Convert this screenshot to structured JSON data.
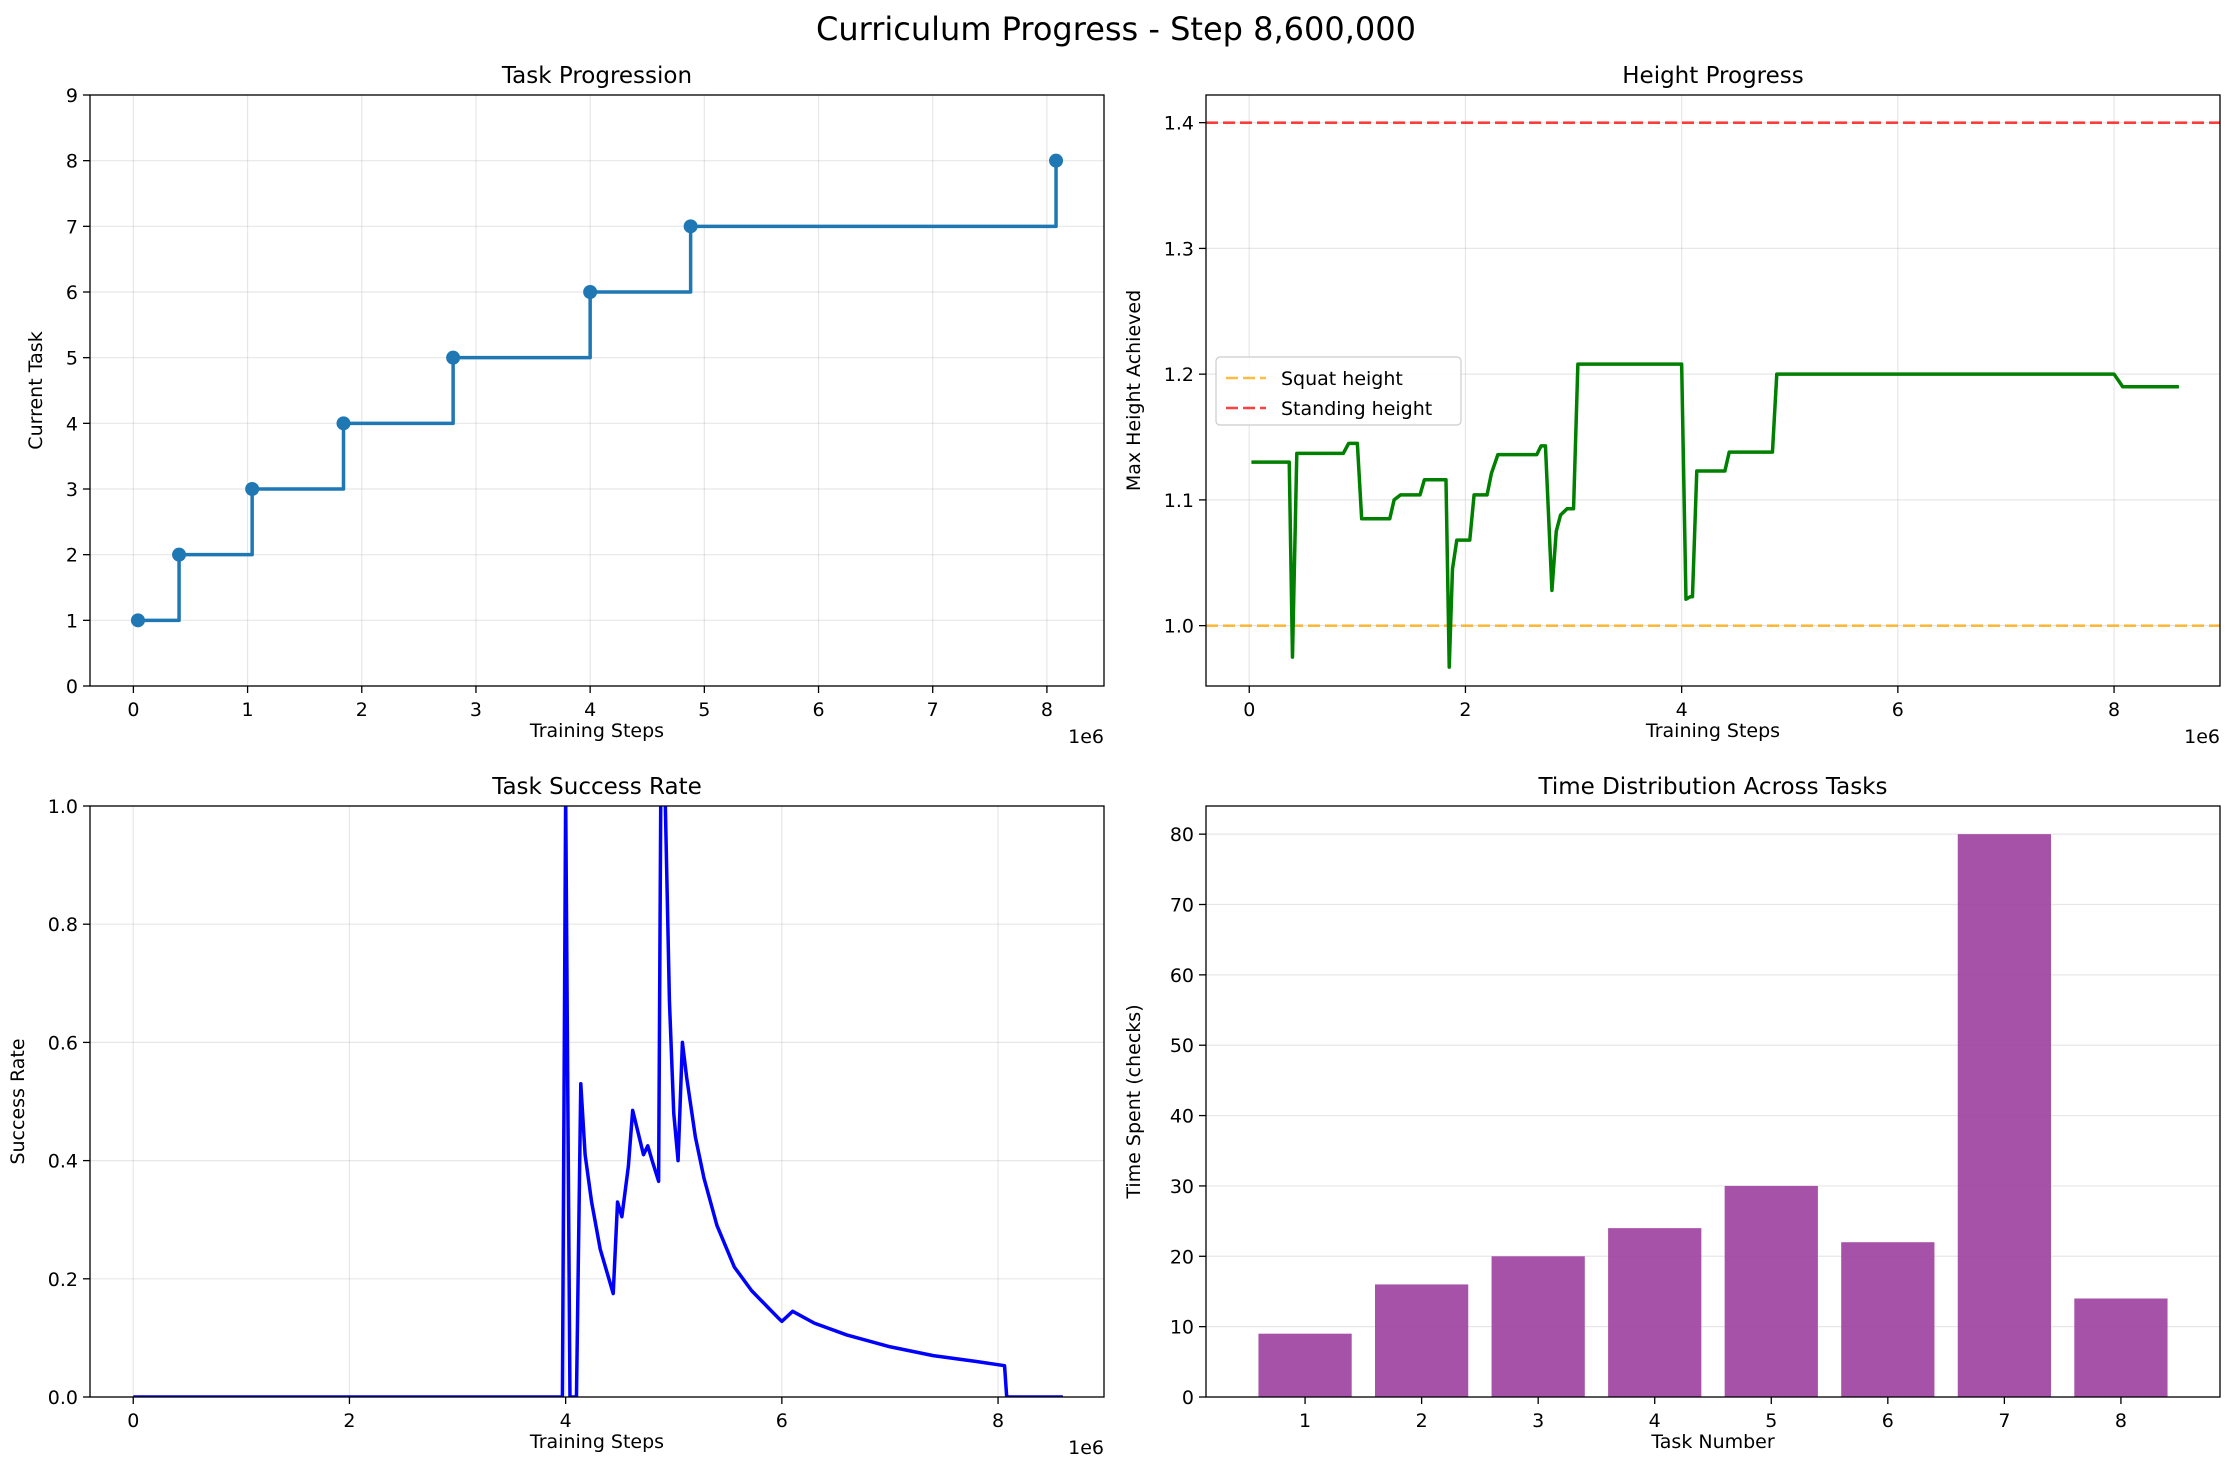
{
  "figure": {
    "title": "Curriculum Progress - Step 8,600,000"
  },
  "chart_data": [
    {
      "id": "task",
      "type": "line",
      "title": "Task Progression",
      "xlabel": "Training Steps",
      "ylabel": "Current Task",
      "x_multiplier": "1e6",
      "xlim": [
        -0.38,
        8.5
      ],
      "ylim": [
        0,
        9
      ],
      "xticks": [
        0,
        1,
        2,
        3,
        4,
        5,
        6,
        7,
        8
      ],
      "yticks": [
        0,
        1,
        2,
        3,
        4,
        5,
        6,
        7,
        8,
        9
      ],
      "grid": true,
      "step": true,
      "color": "#1f77b4",
      "series": [
        {
          "x": [
            0.04,
            0.4,
            1.04,
            1.84,
            2.8,
            4.0,
            4.88,
            8.08
          ],
          "y": [
            1,
            2,
            3,
            4,
            5,
            6,
            7,
            8
          ]
        }
      ],
      "end_x": 8.6
    },
    {
      "id": "height",
      "type": "line",
      "title": "Height Progress",
      "xlabel": "Training Steps",
      "ylabel": "Max Height Achieved",
      "x_multiplier": "1e6",
      "xlim": [
        -0.4,
        8.98
      ],
      "ylim": [
        0.952,
        1.422
      ],
      "xticks": [
        0,
        2,
        4,
        6,
        8
      ],
      "yticks": [
        1.0,
        1.1,
        1.2,
        1.3,
        1.4
      ],
      "grid": true,
      "legend": "center-left",
      "reference_lines": [
        {
          "name": "Squat height",
          "y": 1.0,
          "color": "#ffa500"
        },
        {
          "name": "Standing height",
          "y": 1.4,
          "color": "#ff0000"
        }
      ],
      "series": [
        {
          "color": "#008000",
          "x": [
            0.02,
            0.37,
            0.4,
            0.44,
            0.6,
            0.87,
            0.92,
            1.0,
            1.04,
            1.08,
            1.3,
            1.34,
            1.4,
            1.58,
            1.62,
            1.82,
            1.85,
            1.88,
            1.92,
            2.04,
            2.08,
            2.2,
            2.24,
            2.3,
            2.36,
            2.66,
            2.7,
            2.74,
            2.8,
            2.84,
            2.88,
            2.94,
            3.0,
            3.04,
            3.94,
            4.0,
            4.04,
            4.08,
            4.1,
            4.14,
            4.4,
            4.44,
            4.84,
            4.88,
            8.0,
            8.08,
            8.6
          ],
          "y": [
            1.13,
            1.13,
            0.975,
            1.137,
            1.137,
            1.137,
            1.145,
            1.145,
            1.085,
            1.085,
            1.085,
            1.1,
            1.104,
            1.104,
            1.116,
            1.116,
            0.967,
            1.045,
            1.068,
            1.068,
            1.104,
            1.104,
            1.121,
            1.136,
            1.136,
            1.136,
            1.143,
            1.143,
            1.028,
            1.075,
            1.088,
            1.093,
            1.093,
            1.208,
            1.208,
            1.208,
            1.021,
            1.023,
            1.023,
            1.123,
            1.123,
            1.138,
            1.138,
            1.2,
            1.2,
            1.19,
            1.19
          ]
        }
      ]
    },
    {
      "id": "success",
      "type": "line",
      "title": "Task Success Rate",
      "xlabel": "Training Steps",
      "ylabel": "Success Rate",
      "x_multiplier": "1e6",
      "xlim": [
        -0.4,
        8.98
      ],
      "ylim": [
        0,
        1.0
      ],
      "xticks": [
        0,
        2,
        4,
        6,
        8
      ],
      "yticks": [
        0.0,
        0.2,
        0.4,
        0.6,
        0.8,
        1.0
      ],
      "grid": true,
      "series": [
        {
          "color": "#0000ff",
          "x": [
            0.0,
            3.97,
            4.0,
            4.04,
            4.1,
            4.14,
            4.18,
            4.24,
            4.32,
            4.4,
            4.44,
            4.48,
            4.52,
            4.58,
            4.62,
            4.68,
            4.72,
            4.76,
            4.8,
            4.86,
            4.88,
            4.92,
            4.96,
            5.0,
            5.04,
            5.08,
            5.12,
            5.16,
            5.2,
            5.28,
            5.4,
            5.56,
            5.72,
            5.88,
            5.96,
            6.0,
            6.1,
            6.3,
            6.6,
            7.0,
            7.4,
            7.8,
            8.06,
            8.08,
            8.6
          ],
          "y": [
            0.0,
            0.0,
            1.02,
            0.0,
            0.0,
            0.53,
            0.41,
            0.33,
            0.25,
            0.2,
            0.175,
            0.33,
            0.305,
            0.39,
            0.485,
            0.44,
            0.41,
            0.425,
            0.4,
            0.365,
            1.02,
            1.02,
            0.67,
            0.48,
            0.4,
            0.6,
            0.54,
            0.49,
            0.44,
            0.37,
            0.29,
            0.22,
            0.18,
            0.15,
            0.135,
            0.128,
            0.145,
            0.125,
            0.105,
            0.085,
            0.07,
            0.06,
            0.053,
            0.0,
            0.0
          ]
        }
      ]
    },
    {
      "id": "time",
      "type": "bar",
      "title": "Time Distribution Across Tasks",
      "xlabel": "Task Number",
      "ylabel": "Time Spent (checks)",
      "xlim": [
        0.15,
        8.85
      ],
      "ylim": [
        0,
        84
      ],
      "xticks": [
        1,
        2,
        3,
        4,
        5,
        6,
        7,
        8
      ],
      "yticks": [
        0,
        10,
        20,
        30,
        40,
        50,
        60,
        70,
        80
      ],
      "grid": true,
      "color": "#9c3fa0",
      "categories": [
        "1",
        "2",
        "3",
        "4",
        "5",
        "6",
        "7",
        "8"
      ],
      "values": [
        9,
        16,
        20,
        24,
        30,
        22,
        80,
        14
      ]
    }
  ]
}
